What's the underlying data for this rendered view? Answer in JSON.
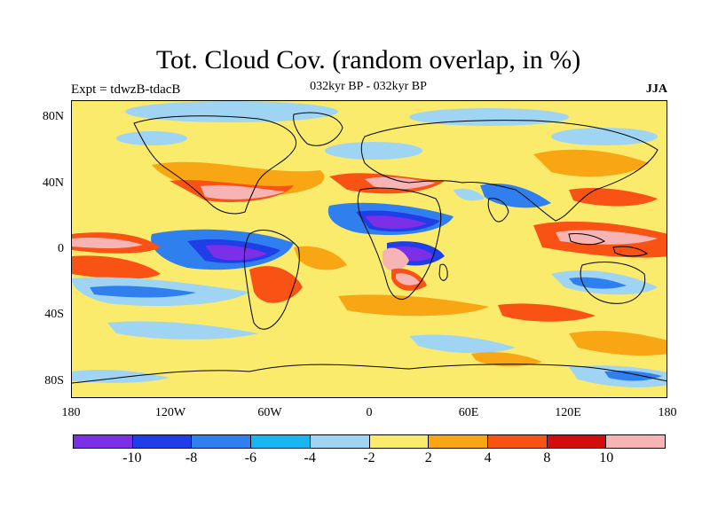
{
  "title": "Tot. Cloud Cov. (random overlap, in %)",
  "left_label": "Expt = tdwzB-tdacB",
  "center_label": "032kyr BP - 032kyr BP",
  "right_label": "JJA",
  "lat_ticks": [
    "80N",
    "40N",
    "0",
    "40S",
    "80S"
  ],
  "lon_ticks": [
    "180",
    "120W",
    "60W",
    "0",
    "60E",
    "120E",
    "180"
  ],
  "colorbar": {
    "colors": [
      "#7b2fe6",
      "#1f3ee8",
      "#2f7fef",
      "#19b5f0",
      "#9fd4f2",
      "#fbeb6d",
      "#f8a613",
      "#f95215",
      "#d30c0c",
      "#f6b4b4"
    ],
    "labels": [
      "-10",
      "-8",
      "-6",
      "-4",
      "-2",
      "2",
      "4",
      "8",
      "10"
    ]
  }
}
